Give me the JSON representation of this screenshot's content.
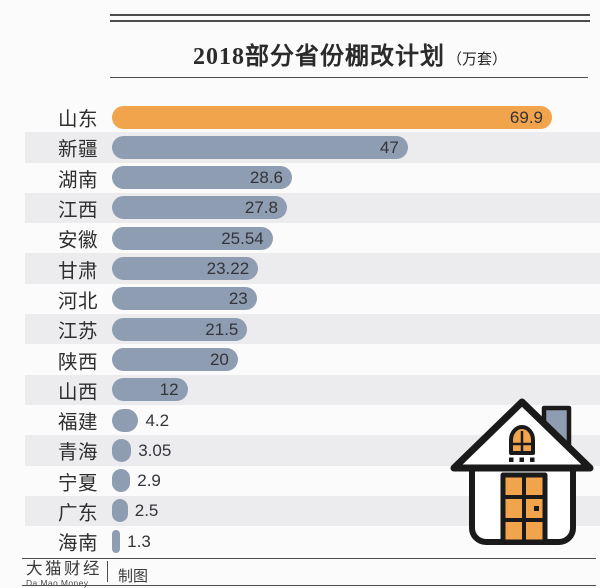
{
  "title": {
    "main": "2018部分省份棚改计划",
    "unit": "（万套）"
  },
  "colors": {
    "highlight": "#F2A44C",
    "bar": "#8E9DB1",
    "stripe": "#ECECEF",
    "text": "#2E2E2E",
    "rule": "#4C4C4C",
    "page_bg": "#FBFBFB"
  },
  "chart_data": {
    "type": "bar",
    "orientation": "horizontal",
    "title": "2018部分省份棚改计划（万套）",
    "unit": "万套",
    "xlim": [
      0,
      69.9
    ],
    "grid": false,
    "legend": false,
    "categories": [
      "山东",
      "新疆",
      "湖南",
      "江西",
      "安徽",
      "甘肃",
      "河北",
      "江苏",
      "陕西",
      "山西",
      "福建",
      "青海",
      "宁夏",
      "广东",
      "海南"
    ],
    "values": [
      69.9,
      47,
      28.6,
      27.8,
      25.54,
      23.22,
      23,
      21.5,
      20,
      12,
      4.2,
      3.05,
      2.9,
      2.5,
      1.3
    ],
    "value_labels": [
      "69.9",
      "47",
      "28.6",
      "27.8",
      "25.54",
      "23.22",
      "23",
      "21.5",
      "20",
      "12",
      "4.2",
      "3.05",
      "2.9",
      "2.5",
      "1.3"
    ],
    "highlight_index": 0,
    "highlight_category": "山东"
  },
  "icons": {
    "decoration": "house-icon"
  },
  "footer": {
    "brand": "大猫财经",
    "brand_sub": "Da Mao Money",
    "credit": "制图"
  }
}
